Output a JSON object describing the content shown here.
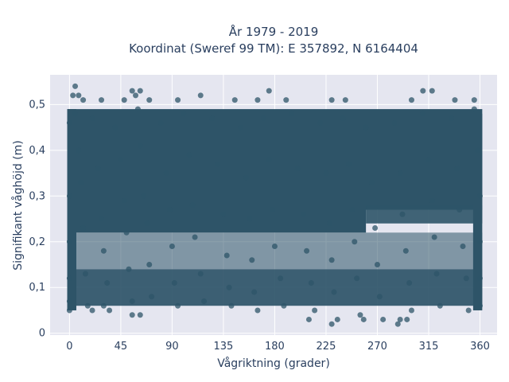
{
  "chart_data": {
    "type": "scatter",
    "title_line1": "År 1979 - 2019",
    "title_line2": "Koordinat (Sweref 99 TM): E 357892, N 6164404",
    "xlabel": "Vågriktning (grader)",
    "ylabel": "Signifikant våghöjd (m)",
    "xlim": [
      -17,
      375
    ],
    "ylim": [
      -0.004,
      0.565
    ],
    "x_ticks": [
      0,
      45,
      90,
      135,
      180,
      225,
      270,
      315,
      360
    ],
    "x_tick_labels": [
      "0",
      "45",
      "90",
      "135",
      "180",
      "225",
      "270",
      "315",
      "360"
    ],
    "y_ticks": [
      0,
      0.1,
      0.2,
      0.3,
      0.4,
      0.5
    ],
    "y_tick_labels": [
      "0",
      "0,1",
      "0,2",
      "0,3",
      "0,4",
      "0,5"
    ],
    "grid": true,
    "colors": {
      "marker": "#2e5468",
      "plot_background": "#e5e6f0",
      "text": "#2a3f5f"
    },
    "series": [
      {
        "points": [
          [
            3,
            0.52
          ],
          [
            5,
            0.54
          ],
          [
            8,
            0.52
          ],
          [
            12,
            0.51
          ],
          [
            28,
            0.51
          ],
          [
            48,
            0.51
          ],
          [
            55,
            0.53
          ],
          [
            58,
            0.52
          ],
          [
            62,
            0.53
          ],
          [
            70,
            0.51
          ],
          [
            95,
            0.51
          ],
          [
            115,
            0.52
          ],
          [
            145,
            0.51
          ],
          [
            165,
            0.51
          ],
          [
            175,
            0.53
          ],
          [
            190,
            0.51
          ],
          [
            230,
            0.51
          ],
          [
            242,
            0.51
          ],
          [
            300,
            0.51
          ],
          [
            310,
            0.53
          ],
          [
            318,
            0.53
          ],
          [
            338,
            0.51
          ],
          [
            355,
            0.51
          ],
          [
            0,
            0.46
          ],
          [
            0,
            0.3
          ],
          [
            0,
            0.2
          ],
          [
            0,
            0.12
          ],
          [
            0,
            0.07
          ],
          [
            0,
            0.05
          ],
          [
            5,
            0.48
          ],
          [
            8,
            0.4
          ],
          [
            10,
            0.33
          ],
          [
            12,
            0.23
          ],
          [
            14,
            0.13
          ],
          [
            16,
            0.06
          ],
          [
            20,
            0.47
          ],
          [
            25,
            0.36
          ],
          [
            28,
            0.25
          ],
          [
            30,
            0.18
          ],
          [
            33,
            0.11
          ],
          [
            35,
            0.05
          ],
          [
            40,
            0.45
          ],
          [
            45,
            0.38
          ],
          [
            48,
            0.29
          ],
          [
            50,
            0.22
          ],
          [
            52,
            0.14
          ],
          [
            55,
            0.07
          ],
          [
            60,
            0.49
          ],
          [
            62,
            0.41
          ],
          [
            65,
            0.3
          ],
          [
            68,
            0.24
          ],
          [
            70,
            0.15
          ],
          [
            72,
            0.08
          ],
          [
            80,
            0.46
          ],
          [
            85,
            0.35
          ],
          [
            88,
            0.27
          ],
          [
            90,
            0.19
          ],
          [
            92,
            0.11
          ],
          [
            95,
            0.06
          ],
          [
            100,
            0.48
          ],
          [
            105,
            0.39
          ],
          [
            108,
            0.28
          ],
          [
            110,
            0.21
          ],
          [
            115,
            0.13
          ],
          [
            118,
            0.07
          ],
          [
            125,
            0.47
          ],
          [
            130,
            0.37
          ],
          [
            135,
            0.26
          ],
          [
            138,
            0.17
          ],
          [
            140,
            0.1
          ],
          [
            142,
            0.06
          ],
          [
            150,
            0.45
          ],
          [
            155,
            0.34
          ],
          [
            158,
            0.25
          ],
          [
            160,
            0.16
          ],
          [
            162,
            0.09
          ],
          [
            165,
            0.05
          ],
          [
            170,
            0.47
          ],
          [
            175,
            0.38
          ],
          [
            178,
            0.27
          ],
          [
            180,
            0.19
          ],
          [
            185,
            0.12
          ],
          [
            188,
            0.06
          ],
          [
            195,
            0.48
          ],
          [
            200,
            0.36
          ],
          [
            205,
            0.26
          ],
          [
            208,
            0.18
          ],
          [
            212,
            0.11
          ],
          [
            215,
            0.05
          ],
          [
            220,
            0.46
          ],
          [
            225,
            0.35
          ],
          [
            228,
            0.24
          ],
          [
            230,
            0.16
          ],
          [
            232,
            0.09
          ],
          [
            235,
            0.03
          ],
          [
            240,
            0.47
          ],
          [
            245,
            0.37
          ],
          [
            248,
            0.27
          ],
          [
            250,
            0.2
          ],
          [
            252,
            0.12
          ],
          [
            255,
            0.04
          ],
          [
            260,
            0.45
          ],
          [
            265,
            0.33
          ],
          [
            268,
            0.23
          ],
          [
            270,
            0.15
          ],
          [
            272,
            0.08
          ],
          [
            275,
            0.03
          ],
          [
            285,
            0.46
          ],
          [
            290,
            0.35
          ],
          [
            292,
            0.26
          ],
          [
            295,
            0.18
          ],
          [
            298,
            0.11
          ],
          [
            300,
            0.05
          ],
          [
            310,
            0.48
          ],
          [
            315,
            0.38
          ],
          [
            318,
            0.29
          ],
          [
            320,
            0.21
          ],
          [
            322,
            0.13
          ],
          [
            325,
            0.06
          ],
          [
            335,
            0.47
          ],
          [
            340,
            0.36
          ],
          [
            342,
            0.27
          ],
          [
            345,
            0.19
          ],
          [
            348,
            0.12
          ],
          [
            350,
            0.05
          ],
          [
            355,
            0.49
          ],
          [
            358,
            0.4
          ],
          [
            360,
            0.3
          ],
          [
            360,
            0.2
          ],
          [
            360,
            0.12
          ],
          [
            360,
            0.06
          ],
          [
            55,
            0.04
          ],
          [
            62,
            0.04
          ],
          [
            210,
            0.03
          ],
          [
            230,
            0.02
          ],
          [
            258,
            0.03
          ],
          [
            288,
            0.02
          ],
          [
            290,
            0.03
          ],
          [
            296,
            0.03
          ],
          [
            30,
            0.06
          ],
          [
            20,
            0.05
          ]
        ]
      }
    ]
  }
}
